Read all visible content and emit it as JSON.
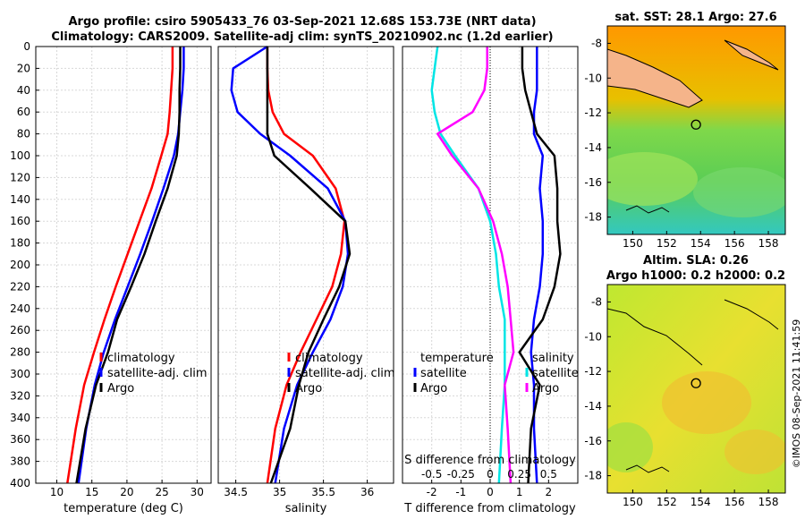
{
  "header": {
    "title_line1": "Argo profile: csiro 5905433_76 03-Sep-2021 12.68S 153.73E (NRT data)",
    "title_line2": "Climatology: CARS2009. Satellite-adj clim: synTS_20210902.nc (1.2d earlier)"
  },
  "colors": {
    "climatology": "#ff0000",
    "satellite": "#0000ff",
    "argo": "#000000",
    "salinity_diff": "#00e5e5",
    "temperature_diff": "#ff00ff"
  },
  "chart_data": [
    {
      "name": "temperature-panel",
      "type": "line",
      "xlabel": "temperature (deg C)",
      "ylabel": "",
      "xlim": [
        7,
        32
      ],
      "ylim": [
        400,
        0
      ],
      "xticks": [
        "10",
        "15",
        "20",
        "25",
        "30"
      ],
      "xtick_values": [
        10,
        15,
        20,
        25,
        30
      ],
      "yticks": [
        "0",
        "20",
        "40",
        "60",
        "80",
        "100",
        "120",
        "140",
        "160",
        "180",
        "200",
        "220",
        "240",
        "260",
        "280",
        "300",
        "320",
        "340",
        "360",
        "380",
        "400"
      ],
      "ytick_values": [
        0,
        20,
        40,
        60,
        80,
        100,
        120,
        140,
        160,
        180,
        200,
        220,
        240,
        260,
        280,
        300,
        320,
        340,
        360,
        380,
        400
      ],
      "legend": [
        "climatology",
        "satellite-adj. clim",
        "Argo"
      ],
      "series": [
        {
          "name": "climatology",
          "color": "#ff0000",
          "x": [
            26.5,
            26.5,
            26.3,
            26.1,
            25.8,
            24.9,
            23.5,
            21.8,
            20.1,
            18.4,
            16.8,
            15.3,
            13.9,
            12.7,
            11.5
          ],
          "y": [
            0,
            20,
            40,
            60,
            80,
            100,
            130,
            160,
            190,
            220,
            250,
            280,
            310,
            350,
            400
          ]
        },
        {
          "name": "satellite-adj. clim",
          "color": "#0000ff",
          "x": [
            28.1,
            28.1,
            27.9,
            27.6,
            27.3,
            26.7,
            25.2,
            23.6,
            21.9,
            20.1,
            18.3,
            16.7,
            15.4,
            14.2,
            13.1
          ],
          "y": [
            0,
            20,
            40,
            60,
            80,
            100,
            130,
            160,
            190,
            220,
            250,
            280,
            310,
            350,
            400
          ]
        },
        {
          "name": "Argo",
          "color": "#000000",
          "x": [
            27.6,
            27.6,
            27.5,
            27.5,
            27.4,
            27.1,
            25.8,
            24.1,
            22.5,
            20.6,
            18.6,
            17.3,
            15.6,
            14.1,
            12.8
          ],
          "y": [
            0,
            20,
            40,
            60,
            80,
            100,
            130,
            160,
            190,
            220,
            250,
            280,
            310,
            350,
            400
          ]
        }
      ]
    },
    {
      "name": "salinity-panel",
      "type": "line",
      "xlabel": "salinity",
      "xlim": [
        34.3,
        36.3
      ],
      "ylim": [
        400,
        0
      ],
      "xticks": [
        "34.5",
        "35",
        "35.5",
        "36"
      ],
      "xtick_values": [
        34.5,
        35,
        35.5,
        36
      ],
      "legend": [
        "climatology",
        "satellite-adj. clim",
        "Argo"
      ],
      "series": [
        {
          "name": "climatology",
          "color": "#ff0000",
          "x": [
            34.86,
            34.86,
            34.87,
            34.92,
            35.05,
            35.38,
            35.64,
            35.74,
            35.7,
            35.6,
            35.42,
            35.24,
            35.08,
            34.95,
            34.86
          ],
          "y": [
            0,
            20,
            40,
            60,
            80,
            100,
            130,
            160,
            190,
            220,
            250,
            280,
            310,
            350,
            400
          ]
        },
        {
          "name": "satellite-adj. clim",
          "color": "#0000ff",
          "x": [
            34.86,
            34.47,
            34.45,
            34.52,
            34.78,
            35.12,
            35.55,
            35.75,
            35.78,
            35.72,
            35.58,
            35.38,
            35.2,
            35.05,
            34.95
          ],
          "y": [
            0,
            20,
            40,
            60,
            80,
            100,
            130,
            160,
            190,
            220,
            250,
            280,
            310,
            350,
            400
          ]
        },
        {
          "name": "Argo",
          "color": "#000000",
          "x": [
            34.86,
            34.86,
            34.86,
            34.86,
            34.86,
            34.94,
            35.35,
            35.75,
            35.8,
            35.68,
            35.5,
            35.33,
            35.22,
            35.12,
            34.9
          ],
          "y": [
            0,
            20,
            40,
            60,
            80,
            100,
            130,
            160,
            190,
            220,
            250,
            280,
            310,
            350,
            400
          ]
        }
      ]
    },
    {
      "name": "difference-panel",
      "type": "line",
      "xlabel": "T difference from climatology",
      "top_label": "S difference from climatology",
      "xlim": [
        -3,
        3
      ],
      "ylim": [
        400,
        0
      ],
      "xticks": [
        "-2",
        "-1",
        "0",
        "1",
        "2"
      ],
      "xtick_values": [
        -2,
        -1,
        0,
        1,
        2
      ],
      "sticks": [
        "-0.5",
        "-0.25",
        "0",
        "0.25",
        "0.5"
      ],
      "stick_values": [
        -0.5,
        -0.25,
        0,
        0.25,
        0.5
      ],
      "legend_temperature": [
        "temperature",
        "satellite",
        "Argo"
      ],
      "legend_salinity": [
        "salinity",
        "satellite",
        "Argo"
      ],
      "series": [
        {
          "name": "T satellite",
          "color": "#0000ff",
          "x": [
            1.6,
            1.6,
            1.6,
            1.5,
            1.5,
            1.8,
            1.7,
            1.8,
            1.8,
            1.7,
            1.5,
            1.4,
            1.5,
            1.5,
            1.6
          ],
          "y": [
            0,
            20,
            40,
            60,
            80,
            100,
            130,
            160,
            190,
            220,
            250,
            280,
            310,
            350,
            400
          ]
        },
        {
          "name": "T Argo",
          "color": "#000000",
          "x": [
            1.1,
            1.1,
            1.2,
            1.4,
            1.6,
            2.2,
            2.3,
            2.3,
            2.4,
            2.2,
            1.8,
            1.0,
            1.7,
            1.4,
            1.3
          ],
          "y": [
            0,
            20,
            40,
            60,
            80,
            100,
            130,
            160,
            190,
            220,
            250,
            280,
            310,
            350,
            400
          ]
        },
        {
          "name": "S satellite",
          "color": "#00e5e5",
          "x": [
            -1.8,
            -1.9,
            -2.0,
            -1.9,
            -1.7,
            -1.2,
            -0.4,
            0.0,
            0.2,
            0.3,
            0.5,
            0.5,
            0.5,
            0.4,
            0.3
          ],
          "y": [
            0,
            20,
            40,
            60,
            80,
            100,
            130,
            160,
            190,
            220,
            250,
            280,
            310,
            350,
            400
          ]
        },
        {
          "name": "S Argo",
          "color": "#ff00ff",
          "x": [
            -0.1,
            -0.1,
            -0.2,
            -0.6,
            -1.8,
            -1.3,
            -0.4,
            0.1,
            0.4,
            0.6,
            0.7,
            0.8,
            0.5,
            0.6,
            0.7
          ],
          "y": [
            0,
            20,
            40,
            60,
            80,
            100,
            130,
            160,
            190,
            220,
            250,
            280,
            310,
            350,
            400
          ]
        }
      ]
    }
  ],
  "maps": {
    "sst": {
      "title": "sat. SST: 28.1 Argo: 27.6",
      "xticks": [
        "150",
        "152",
        "154",
        "156",
        "158"
      ],
      "yticks": [
        "-8",
        "-10",
        "-12",
        "-14",
        "-16",
        "-18"
      ],
      "lon_range": [
        148.5,
        159
      ],
      "lat_range": [
        -19,
        -7
      ],
      "marker": {
        "lon": 153.73,
        "lat": -12.68
      }
    },
    "sla": {
      "title1": "Altim. SLA: 0.26",
      "title2": "Argo h1000: 0.2 h2000: 0.2",
      "xticks": [
        "150",
        "152",
        "154",
        "156",
        "158"
      ],
      "yticks": [
        "-8",
        "-10",
        "-12",
        "-14",
        "-16",
        "-18"
      ],
      "lon_range": [
        148.5,
        159
      ],
      "lat_range": [
        -19,
        -7
      ],
      "marker": {
        "lon": 153.73,
        "lat": -12.68
      }
    }
  },
  "credit": "©IMOS 08-Sep-2021 11:41:59"
}
